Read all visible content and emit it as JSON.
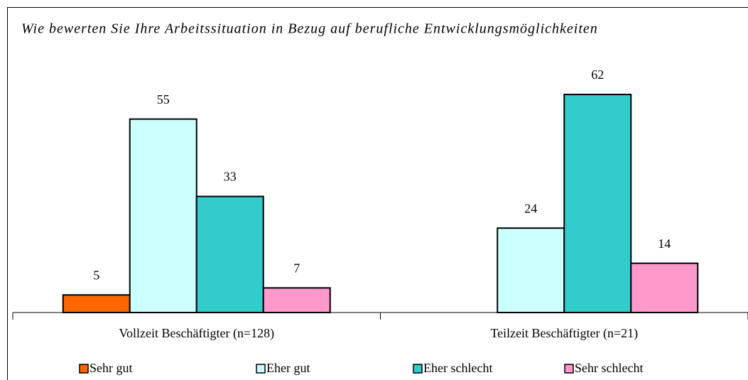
{
  "chart_data": {
    "type": "bar",
    "title": "Wie bewerten Sie Ihre Arbeitssituation in Bezug auf berufliche Entwicklungsmöglichkeiten",
    "categories": [
      "Vollzeit Beschäftigter (n=128)",
      "Teilzeit Beschäftigter (n=21)"
    ],
    "series": [
      {
        "name": "Sehr gut",
        "color": "#ff6600",
        "values": [
          5,
          null
        ]
      },
      {
        "name": "Eher gut",
        "color": "#ccffff",
        "values": [
          55,
          24
        ]
      },
      {
        "name": "Eher schlecht",
        "color": "#33cccc",
        "values": [
          33,
          62
        ]
      },
      {
        "name": "Sehr schlecht",
        "color": "#ff99cc",
        "values": [
          7,
          14
        ]
      }
    ],
    "legend": "bottom"
  }
}
